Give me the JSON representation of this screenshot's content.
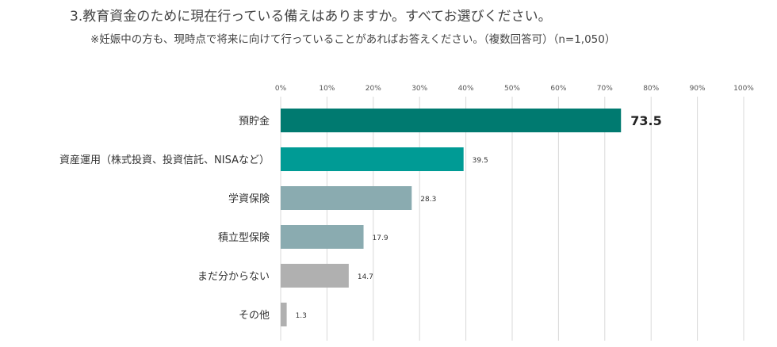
{
  "header": {
    "title": "3.教育資金のために現在行っている備えはありますか。すべてお選びください。",
    "subtitle": "※妊娠中の方も、現時点で将来に向けて行っていることがあればお答えください。（複数回答可）（n=1,050）"
  },
  "chart_data": {
    "type": "bar",
    "orientation": "horizontal",
    "categories": [
      "預貯金",
      "資産運用（株式投資、投資信託、NISAなど）",
      "学資保険",
      "積立型保険",
      "まだ分からない",
      "その他"
    ],
    "values": [
      73.5,
      39.5,
      28.3,
      17.9,
      14.7,
      1.3
    ],
    "xlim": [
      0,
      100
    ],
    "x_ticks": [
      "0%",
      "10%",
      "20%",
      "30%",
      "40%",
      "50%",
      "60%",
      "70%",
      "80%",
      "90%",
      "100%"
    ],
    "grid": true,
    "bar_colors": [
      "#007a70",
      "#009b95",
      "#8aabb0",
      "#8aabb0",
      "#b0b0b0",
      "#b0b0b0"
    ],
    "highlight_first_value": true
  }
}
